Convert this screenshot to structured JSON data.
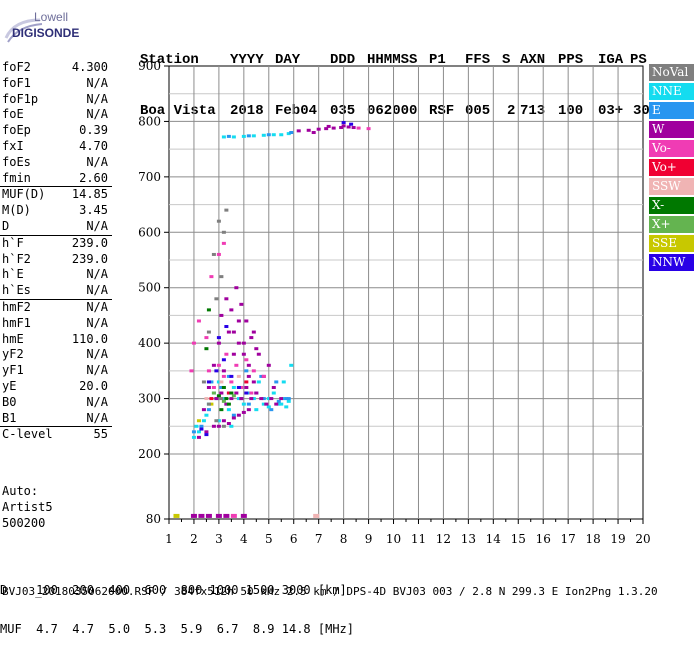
{
  "logo": {
    "line1": "Lowell",
    "line2": "DIGISONDE"
  },
  "header": {
    "labels": [
      "Station",
      "YYYY",
      "DAY",
      "DDD",
      "HHMMSS",
      "P1",
      "FFS",
      "S",
      "AXN",
      "PPS",
      "IGA",
      "PS"
    ],
    "values": [
      "Boa Vista",
      "2018",
      "Feb04",
      "035",
      "062000",
      "RSF",
      "005",
      "2",
      "713",
      "100",
      "03+",
      "30"
    ]
  },
  "params_groups": [
    [
      {
        "name": "foF2",
        "value": "4.300"
      },
      {
        "name": "foF1",
        "value": "N/A"
      },
      {
        "name": "foF1p",
        "value": "N/A"
      },
      {
        "name": "foE",
        "value": "N/A"
      },
      {
        "name": "foEp",
        "value": "0.39"
      },
      {
        "name": "fxI",
        "value": "4.70"
      },
      {
        "name": "foEs",
        "value": "N/A"
      },
      {
        "name": "fmin",
        "value": "2.60"
      }
    ],
    [
      {
        "name": "MUF(D)",
        "value": "14.85"
      },
      {
        "name": "M(D)",
        "value": "3.45"
      },
      {
        "name": "D",
        "value": "N/A"
      }
    ],
    [
      {
        "name": "h`F",
        "value": "239.0"
      },
      {
        "name": "h`F2",
        "value": "239.0"
      },
      {
        "name": "h`E",
        "value": "N/A"
      },
      {
        "name": "h`Es",
        "value": "N/A"
      }
    ],
    [
      {
        "name": "hmF2",
        "value": "N/A"
      },
      {
        "name": "hmF1",
        "value": "N/A"
      },
      {
        "name": "hmE",
        "value": "110.0"
      },
      {
        "name": "yF2",
        "value": "N/A"
      },
      {
        "name": "yF1",
        "value": "N/A"
      },
      {
        "name": "yE",
        "value": "20.0"
      },
      {
        "name": "B0",
        "value": "N/A"
      },
      {
        "name": "B1",
        "value": "N/A"
      }
    ],
    [
      {
        "name": "C-level",
        "value": "55"
      }
    ]
  ],
  "autoscale": {
    "line1": "Auto:",
    "line2": "Artist5",
    "line3": "500200"
  },
  "legend": [
    {
      "label": "NoVal",
      "color": "#7f7f7f"
    },
    {
      "label": "NNE",
      "color": "#14dcf0"
    },
    {
      "label": "E",
      "color": "#2896f0"
    },
    {
      "label": "W",
      "color": "#a0009e"
    },
    {
      "label": "Vo-",
      "color": "#f03cb4"
    },
    {
      "label": "Vo+",
      "color": "#f00032"
    },
    {
      "label": "SSW",
      "color": "#f0b4b4"
    },
    {
      "label": "X-",
      "color": "#007800"
    },
    {
      "label": "X+",
      "color": "#64b450"
    },
    {
      "label": "SSE",
      "color": "#c8c800"
    },
    {
      "label": "NNW",
      "color": "#2800e6"
    }
  ],
  "distance_table": {
    "line1": "D    100  200  400  600  800 1000 1500 3000 [km]",
    "line2": "MUF  4.7  4.7  5.0  5.3  5.9  6.7  8.9 14.8 [MHz]"
  },
  "footer": "BVJ03_2018035062000.RSF / 384fx512h 50 kHz 2.5 km / DPS-4D BVJ03 003 / 2.8 N 299.3 E Ion2Png 1.3.20",
  "chart_data": {
    "type": "scatter",
    "title": "",
    "xlabel": "",
    "ylabel": "",
    "xlim": [
      1,
      20
    ],
    "ylim": [
      80,
      900
    ],
    "xticks": [
      1,
      2,
      3,
      4,
      5,
      6,
      7,
      8,
      9,
      10,
      11,
      12,
      13,
      14,
      15,
      16,
      17,
      18,
      19,
      20
    ],
    "yticks": [
      80,
      200,
      300,
      400,
      500,
      600,
      700,
      800,
      900
    ],
    "grid": true,
    "series": [
      {
        "color_key": "NNE",
        "points": [
          [
            2.2,
            240
          ],
          [
            2.4,
            260
          ],
          [
            2.6,
            290
          ],
          [
            2.8,
            310
          ],
          [
            3.0,
            330
          ],
          [
            3.2,
            300
          ],
          [
            3.4,
            280
          ],
          [
            3.6,
            320
          ],
          [
            3.8,
            300
          ],
          [
            4.0,
            290
          ],
          [
            4.2,
            310
          ],
          [
            4.4,
            300
          ],
          [
            4.6,
            330
          ],
          [
            4.8,
            290
          ],
          [
            5.0,
            300
          ],
          [
            5.2,
            310
          ],
          [
            5.4,
            290
          ],
          [
            5.6,
            300
          ],
          [
            5.8,
            295
          ],
          [
            5.6,
            330
          ],
          [
            5.9,
            360
          ],
          [
            2.0,
            230
          ],
          [
            2.1,
            250
          ],
          [
            2.5,
            270
          ],
          [
            3.0,
            260
          ],
          [
            3.5,
            250
          ],
          [
            4.5,
            280
          ],
          [
            5.0,
            285
          ],
          [
            5.5,
            290
          ],
          [
            5.7,
            285
          ],
          [
            3.2,
            772
          ],
          [
            3.6,
            772
          ],
          [
            4.0,
            773
          ],
          [
            4.4,
            774
          ],
          [
            4.8,
            775
          ],
          [
            5.2,
            776
          ],
          [
            5.5,
            776
          ],
          [
            5.8,
            778
          ]
        ]
      },
      {
        "color_key": "E",
        "points": [
          [
            2.3,
            250
          ],
          [
            2.6,
            280
          ],
          [
            2.9,
            300
          ],
          [
            3.1,
            320
          ],
          [
            3.3,
            290
          ],
          [
            3.6,
            270
          ],
          [
            3.9,
            300
          ],
          [
            4.2,
            290
          ],
          [
            4.5,
            310
          ],
          [
            4.8,
            300
          ],
          [
            5.1,
            280
          ],
          [
            5.4,
            295
          ],
          [
            5.7,
            300
          ],
          [
            2.0,
            240
          ],
          [
            2.7,
            330
          ],
          [
            3.4,
            340
          ],
          [
            4.1,
            350
          ],
          [
            4.7,
            340
          ],
          [
            5.3,
            330
          ],
          [
            5.8,
            300
          ],
          [
            3.4,
            773
          ],
          [
            4.2,
            774
          ],
          [
            5.0,
            776
          ],
          [
            5.9,
            780
          ]
        ]
      },
      {
        "color_key": "W",
        "points": [
          [
            2.4,
            280
          ],
          [
            2.6,
            320
          ],
          [
            2.8,
            360
          ],
          [
            3.0,
            400
          ],
          [
            3.2,
            350
          ],
          [
            3.4,
            420
          ],
          [
            3.6,
            380
          ],
          [
            3.8,
            440
          ],
          [
            4.0,
            400
          ],
          [
            4.2,
            360
          ],
          [
            4.4,
            420
          ],
          [
            4.6,
            380
          ],
          [
            4.8,
            340
          ],
          [
            5.0,
            360
          ],
          [
            5.2,
            320
          ],
          [
            3.1,
            450
          ],
          [
            3.3,
            480
          ],
          [
            3.5,
            460
          ],
          [
            3.7,
            500
          ],
          [
            3.9,
            470
          ],
          [
            4.1,
            440
          ],
          [
            4.3,
            410
          ],
          [
            4.5,
            390
          ],
          [
            2.9,
            300
          ],
          [
            3.1,
            310
          ],
          [
            3.3,
            290
          ],
          [
            3.5,
            300
          ],
          [
            3.7,
            310
          ],
          [
            3.9,
            300
          ],
          [
            4.1,
            320
          ],
          [
            4.3,
            300
          ],
          [
            4.5,
            310
          ],
          [
            4.7,
            300
          ],
          [
            4.9,
            290
          ],
          [
            5.1,
            300
          ],
          [
            5.3,
            290
          ],
          [
            5.5,
            300
          ],
          [
            3.6,
            420
          ],
          [
            3.8,
            400
          ],
          [
            4.0,
            380
          ],
          [
            4.2,
            340
          ],
          [
            4.4,
            330
          ],
          [
            2.2,
            230
          ],
          [
            2.5,
            240
          ],
          [
            2.8,
            250
          ],
          [
            3.0,
            250
          ],
          [
            3.2,
            260
          ],
          [
            3.4,
            255
          ],
          [
            3.6,
            265
          ],
          [
            3.8,
            270
          ],
          [
            4.0,
            275
          ],
          [
            4.2,
            280
          ],
          [
            6.2,
            783
          ],
          [
            6.6,
            784
          ],
          [
            7.0,
            786
          ],
          [
            7.3,
            787
          ],
          [
            7.6,
            788
          ],
          [
            7.9,
            789
          ],
          [
            8.2,
            790
          ],
          [
            8.4,
            789
          ],
          [
            6.8,
            780
          ],
          [
            7.4,
            791
          ],
          [
            8.0,
            792
          ]
        ]
      },
      {
        "color_key": "Vo-",
        "points": [
          [
            2.6,
            350
          ],
          [
            3.0,
            360
          ],
          [
            3.3,
            380
          ],
          [
            3.7,
            360
          ],
          [
            4.1,
            370
          ],
          [
            4.4,
            350
          ],
          [
            4.8,
            340
          ],
          [
            3.5,
            330
          ],
          [
            3.9,
            320
          ],
          [
            4.3,
            310
          ],
          [
            2.8,
            320
          ],
          [
            3.2,
            340
          ],
          [
            2.5,
            410
          ],
          [
            2.7,
            520
          ],
          [
            2.2,
            440
          ],
          [
            2.0,
            400
          ],
          [
            1.9,
            350
          ],
          [
            3.0,
            560
          ],
          [
            3.2,
            580
          ],
          [
            8.6,
            788
          ],
          [
            9.0,
            787
          ]
        ]
      },
      {
        "color_key": "Vo+",
        "points": [
          [
            2.7,
            300
          ],
          [
            3.4,
            310
          ],
          [
            4.1,
            330
          ]
        ]
      },
      {
        "color_key": "SSW",
        "points": [
          [
            2.5,
            300
          ],
          [
            3.1,
            330
          ],
          [
            3.8,
            340
          ]
        ]
      },
      {
        "color_key": "X-",
        "points": [
          [
            3.0,
            305
          ],
          [
            3.1,
            280
          ],
          [
            3.2,
            320
          ],
          [
            3.3,
            300
          ],
          [
            3.4,
            290
          ],
          [
            3.5,
            310
          ],
          [
            2.5,
            390
          ],
          [
            2.6,
            460
          ]
        ]
      },
      {
        "color_key": "X+",
        "points": [
          [
            2.8,
            310
          ],
          [
            3.2,
            295
          ],
          [
            3.6,
            305
          ]
        ]
      },
      {
        "color_key": "SSE",
        "points": [
          [
            2.2,
            260
          ],
          [
            2.7,
            290
          ]
        ]
      },
      {
        "color_key": "NNW",
        "points": [
          [
            2.6,
            330
          ],
          [
            2.9,
            350
          ],
          [
            3.2,
            370
          ],
          [
            3.5,
            340
          ],
          [
            3.8,
            320
          ],
          [
            4.1,
            310
          ],
          [
            3.0,
            410
          ],
          [
            3.3,
            430
          ],
          [
            2.3,
            245
          ],
          [
            2.5,
            235
          ],
          [
            8.0,
            798
          ],
          [
            8.3,
            795
          ]
        ]
      },
      {
        "color_key": "NoVal",
        "points": [
          [
            2.4,
            330
          ],
          [
            2.6,
            420
          ],
          [
            2.8,
            560
          ],
          [
            3.0,
            620
          ],
          [
            3.2,
            600
          ],
          [
            3.1,
            520
          ],
          [
            2.9,
            480
          ],
          [
            3.3,
            640
          ],
          [
            2.6,
            290
          ],
          [
            2.9,
            260
          ],
          [
            3.1,
            300
          ],
          [
            3.2,
            250
          ]
        ]
      }
    ],
    "baseline_markers": [
      {
        "x": 1.3,
        "color_key": "SSE"
      },
      {
        "x": 2.0,
        "color_key": "W"
      },
      {
        "x": 2.3,
        "color_key": "W"
      },
      {
        "x": 2.6,
        "color_key": "W"
      },
      {
        "x": 3.0,
        "color_key": "W"
      },
      {
        "x": 3.3,
        "color_key": "W"
      },
      {
        "x": 3.6,
        "color_key": "Vo-"
      },
      {
        "x": 4.0,
        "color_key": "W"
      },
      {
        "x": 6.9,
        "color_key": "SSW"
      }
    ]
  }
}
